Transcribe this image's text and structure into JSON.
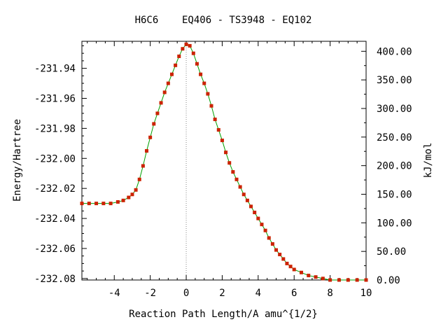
{
  "chart_data": {
    "type": "line",
    "title": "H6C6    EQ406 - TS3948 - EQ102",
    "xlabel": "Reaction Path Length/A amu^{1/2}",
    "ylabel": "Energy/Hartree",
    "y2label": "kJ/mol",
    "xlim": [
      -5.8,
      10
    ],
    "ylim": [
      -232.081,
      -231.922
    ],
    "y2lim": [
      0,
      417.5
    ],
    "x_ticks": [
      -4,
      -2,
      0,
      2,
      4,
      6,
      8,
      10
    ],
    "y_ticks": [
      -231.94,
      -231.96,
      -231.98,
      -232.0,
      -232.02,
      -232.04,
      -232.06,
      -232.08
    ],
    "y_tick_labels": [
      "-231.94",
      "-231.96",
      "-231.98",
      "-232.00",
      "-232.02",
      "-232.04",
      "-232.06",
      "-232.08"
    ],
    "y2_ticks": [
      400,
      350,
      300,
      250,
      200,
      150,
      100,
      50,
      0
    ],
    "y2_tick_labels": [
      "400.00",
      "350.00",
      "300.00",
      "250.00",
      "200.00",
      "150.00",
      "100.00",
      "50.00",
      "0.00"
    ],
    "transition_state_x": 0,
    "line_color": "#00a000",
    "marker_color": "#cc2200",
    "ts_line_color": "#888888",
    "grid": false,
    "series": [
      {
        "points": [
          [
            -5.8,
            -232.03
          ],
          [
            -5.4,
            -232.03
          ],
          [
            -5.0,
            -232.03
          ],
          [
            -4.6,
            -232.03
          ],
          [
            -4.2,
            -232.03
          ],
          [
            -3.8,
            -232.029
          ],
          [
            -3.5,
            -232.028
          ],
          [
            -3.2,
            -232.026
          ],
          [
            -3.0,
            -232.024
          ],
          [
            -2.8,
            -232.021
          ],
          [
            -2.6,
            -232.014
          ],
          [
            -2.4,
            -232.005
          ],
          [
            -2.2,
            -231.995
          ],
          [
            -2.0,
            -231.986
          ],
          [
            -1.8,
            -231.977
          ],
          [
            -1.6,
            -231.97
          ],
          [
            -1.4,
            -231.963
          ],
          [
            -1.2,
            -231.956
          ],
          [
            -1.0,
            -231.95
          ],
          [
            -0.8,
            -231.944
          ],
          [
            -0.6,
            -231.938
          ],
          [
            -0.4,
            -231.932
          ],
          [
            -0.2,
            -231.927
          ],
          [
            0.0,
            -231.924
          ],
          [
            0.2,
            -231.925
          ],
          [
            0.4,
            -231.93
          ],
          [
            0.6,
            -231.937
          ],
          [
            0.8,
            -231.944
          ],
          [
            1.0,
            -231.95
          ],
          [
            1.2,
            -231.957
          ],
          [
            1.4,
            -231.965
          ],
          [
            1.6,
            -231.974
          ],
          [
            1.8,
            -231.981
          ],
          [
            2.0,
            -231.988
          ],
          [
            2.2,
            -231.996
          ],
          [
            2.4,
            -232.003
          ],
          [
            2.6,
            -232.009
          ],
          [
            2.8,
            -232.014
          ],
          [
            3.0,
            -232.019
          ],
          [
            3.2,
            -232.024
          ],
          [
            3.4,
            -232.028
          ],
          [
            3.6,
            -232.032
          ],
          [
            3.8,
            -232.036
          ],
          [
            4.0,
            -232.04
          ],
          [
            4.2,
            -232.044
          ],
          [
            4.4,
            -232.048
          ],
          [
            4.6,
            -232.053
          ],
          [
            4.8,
            -232.057
          ],
          [
            5.0,
            -232.061
          ],
          [
            5.2,
            -232.064
          ],
          [
            5.4,
            -232.067
          ],
          [
            5.6,
            -232.07
          ],
          [
            5.8,
            -232.072
          ],
          [
            6.0,
            -232.074
          ],
          [
            6.4,
            -232.076
          ],
          [
            6.8,
            -232.078
          ],
          [
            7.2,
            -232.079
          ],
          [
            7.6,
            -232.08
          ],
          [
            8.0,
            -232.081
          ],
          [
            8.5,
            -232.081
          ],
          [
            9.0,
            -232.081
          ],
          [
            9.5,
            -232.081
          ],
          [
            10.0,
            -232.081
          ]
        ]
      }
    ]
  }
}
